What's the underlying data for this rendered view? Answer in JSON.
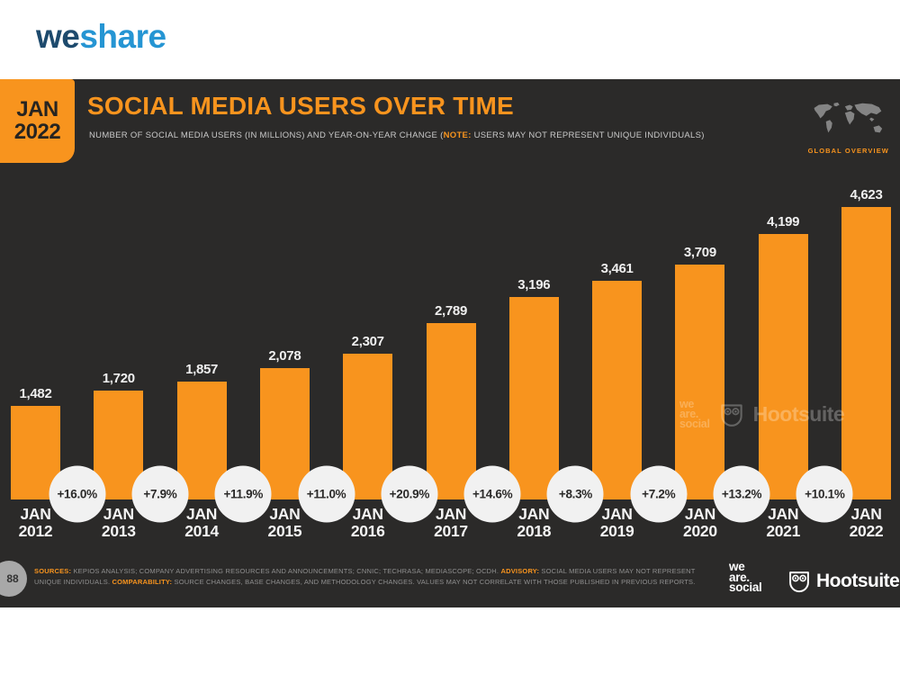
{
  "header": {
    "logo": {
      "part1": "we",
      "part2": "share"
    }
  },
  "slide": {
    "date_badge": {
      "month": "JAN",
      "year": "2022"
    },
    "title": "SOCIAL MEDIA USERS OVER TIME",
    "subtitle": {
      "prefix": "NUMBER OF SOCIAL MEDIA USERS (IN MILLIONS) AND YEAR-ON-YEAR CHANGE (",
      "note_label": "NOTE:",
      "suffix": " USERS MAY NOT REPRESENT UNIQUE INDIVIDUALS)"
    },
    "global_overview_label": "GLOBAL OVERVIEW",
    "watermark": {
      "we_are_social": [
        "we",
        "are.",
        "social"
      ],
      "hootsuite": "Hootsuite"
    },
    "footer": {
      "page_number": "88",
      "sources_label": "SOURCES:",
      "sources_text": " KEPIOS ANALYSIS; COMPANY ADVERTISING RESOURCES AND ANNOUNCEMENTS; CNNIC; TECHRASA; MEDIASCOPE; OCDH. ",
      "advisory_label": "ADVISORY:",
      "advisory_text": " SOCIAL MEDIA USERS MAY NOT REPRESENT UNIQUE INDIVIDUALS. ",
      "comparability_label": "COMPARABILITY:",
      "comparability_text": " SOURCE CHANGES, BASE CHANGES, AND METHODOLOGY CHANGES. VALUES MAY NOT CORRELATE WITH THOSE PUBLISHED IN PREVIOUS REPORTS.",
      "we_are_social": [
        "we",
        "are.",
        "social"
      ],
      "hootsuite": "Hootsuite"
    }
  },
  "chart_data": {
    "type": "bar",
    "title": "SOCIAL MEDIA USERS OVER TIME",
    "subtitle": "NUMBER OF SOCIAL MEDIA USERS (IN MILLIONS) AND YEAR-ON-YEAR CHANGE",
    "categories": [
      "JAN 2012",
      "JAN 2013",
      "JAN 2014",
      "JAN 2015",
      "JAN 2016",
      "JAN 2017",
      "JAN 2018",
      "JAN 2019",
      "JAN 2020",
      "JAN 2021",
      "JAN 2022"
    ],
    "values": [
      1482,
      1720,
      1857,
      2078,
      2307,
      2789,
      3196,
      3461,
      3709,
      4199,
      4623
    ],
    "value_labels": [
      "1,482",
      "1,720",
      "1,857",
      "2,078",
      "2,307",
      "2,789",
      "3,196",
      "3,461",
      "3,709",
      "4,199",
      "4,623"
    ],
    "yoy_change": [
      "+16.0%",
      "+7.9%",
      "+11.9%",
      "+11.0%",
      "+20.9%",
      "+14.6%",
      "+8.3%",
      "+7.2%",
      "+13.2%",
      "+10.1%"
    ],
    "units": "millions of users",
    "ylim": [
      0,
      5000
    ],
    "grid": false,
    "legend": "none",
    "bar_color": "#F8941E"
  },
  "colors": {
    "accent_orange": "#F8941E",
    "slide_background": "#2B2A29",
    "logo_dark_blue": "#1D4A6D",
    "logo_light_blue": "#2595D3",
    "circle_background": "#F1F1F1",
    "value_label_text": "#EFEFEF"
  }
}
